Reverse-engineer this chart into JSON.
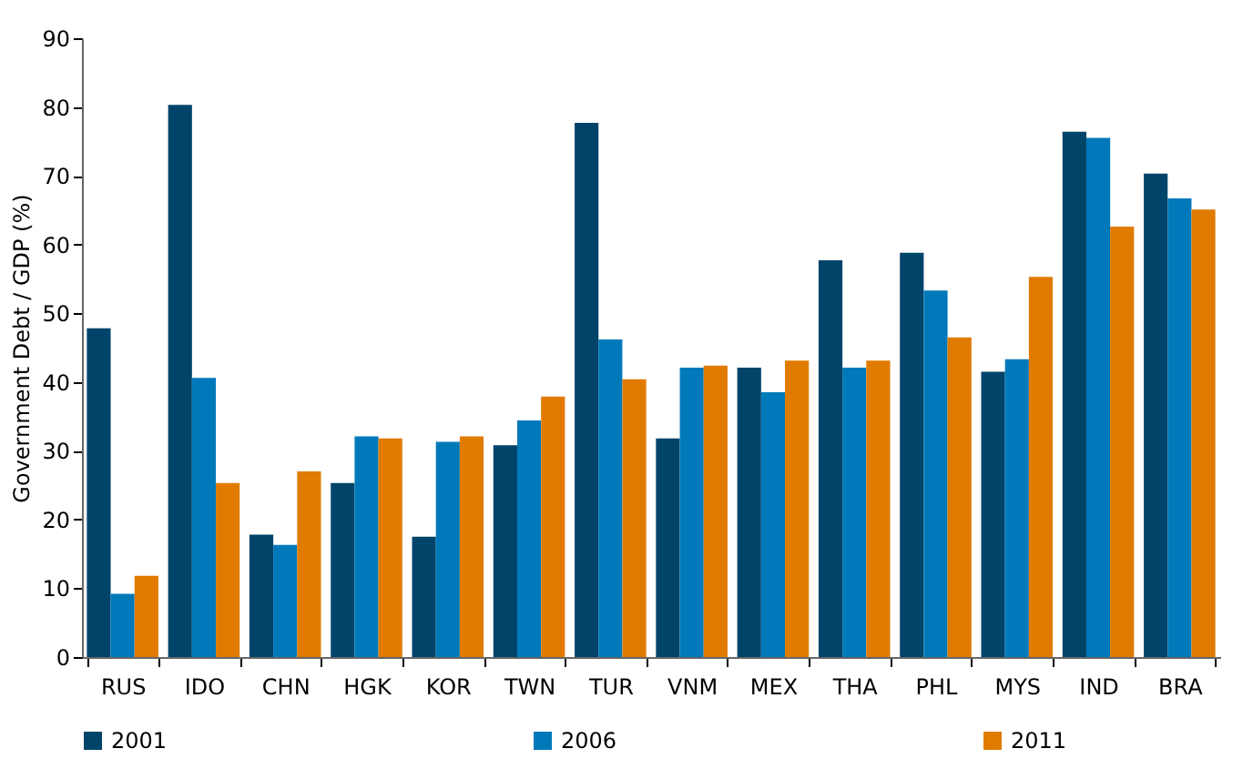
{
  "chart_data": {
    "type": "bar",
    "ylabel": "Government Debt / GDP (%)",
    "categories": [
      "RUS",
      "IDO",
      "CHN",
      "HGK",
      "KOR",
      "TWN",
      "TUR",
      "VNM",
      "MEX",
      "THA",
      "PHL",
      "MYS",
      "IND",
      "BRA"
    ],
    "series": [
      {
        "name": "2001",
        "color": "#00446a",
        "values": [
          47.8,
          80.3,
          17.8,
          25.3,
          17.5,
          30.8,
          77.7,
          31.8,
          42.1,
          57.7,
          58.8,
          41.5,
          76.4,
          70.3
        ]
      },
      {
        "name": "2006",
        "color": "#0079ba",
        "values": [
          9.2,
          40.6,
          16.3,
          32.1,
          31.3,
          34.4,
          46.2,
          42.1,
          38.5,
          42.1,
          53.3,
          43.3,
          75.5,
          66.7
        ]
      },
      {
        "name": "2011",
        "color": "#e07b00",
        "values": [
          11.8,
          25.3,
          27.0,
          31.8,
          32.1,
          37.9,
          40.4,
          42.4,
          43.1,
          43.1,
          46.5,
          55.3,
          62.6,
          65.1
        ]
      }
    ],
    "ylim": [
      0,
      90
    ],
    "yticks": [
      0,
      10,
      20,
      30,
      40,
      50,
      60,
      70,
      80,
      90
    ],
    "grid": false,
    "legend": "bottom"
  }
}
